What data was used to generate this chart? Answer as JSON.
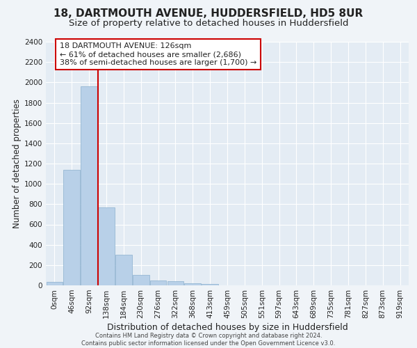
{
  "title": "18, DARTMOUTH AVENUE, HUDDERSFIELD, HD5 8UR",
  "subtitle": "Size of property relative to detached houses in Huddersfield",
  "xlabel": "Distribution of detached houses by size in Huddersfield",
  "ylabel": "Number of detached properties",
  "footer_line1": "Contains HM Land Registry data © Crown copyright and database right 2024.",
  "footer_line2": "Contains public sector information licensed under the Open Government Licence v3.0.",
  "bar_labels": [
    "0sqm",
    "46sqm",
    "92sqm",
    "138sqm",
    "184sqm",
    "230sqm",
    "276sqm",
    "322sqm",
    "368sqm",
    "413sqm",
    "459sqm",
    "505sqm",
    "551sqm",
    "597sqm",
    "643sqm",
    "689sqm",
    "735sqm",
    "781sqm",
    "827sqm",
    "873sqm",
    "919sqm"
  ],
  "bar_values": [
    35,
    1140,
    1960,
    770,
    300,
    100,
    48,
    38,
    22,
    15,
    0,
    0,
    0,
    0,
    0,
    0,
    0,
    0,
    0,
    0,
    0
  ],
  "bar_color": "#b8d0e8",
  "bar_edge_color": "#8ab0ce",
  "ylim": [
    0,
    2400
  ],
  "yticks": [
    0,
    200,
    400,
    600,
    800,
    1000,
    1200,
    1400,
    1600,
    1800,
    2000,
    2200,
    2400
  ],
  "property_label": "18 DARTMOUTH AVENUE: 126sqm",
  "annotation_line1": "← 61% of detached houses are smaller (2,686)",
  "annotation_line2": "38% of semi-detached houses are larger (1,700) →",
  "vline_x": 2.5,
  "background_color": "#f0f4f8",
  "plot_bg_color": "#e4ecf4",
  "grid_color": "#ffffff",
  "title_fontsize": 11,
  "subtitle_fontsize": 9.5,
  "vline_color": "#cc0000",
  "annotation_fontsize": 8,
  "tick_fontsize": 7.5,
  "ylabel_fontsize": 8.5,
  "xlabel_fontsize": 9
}
